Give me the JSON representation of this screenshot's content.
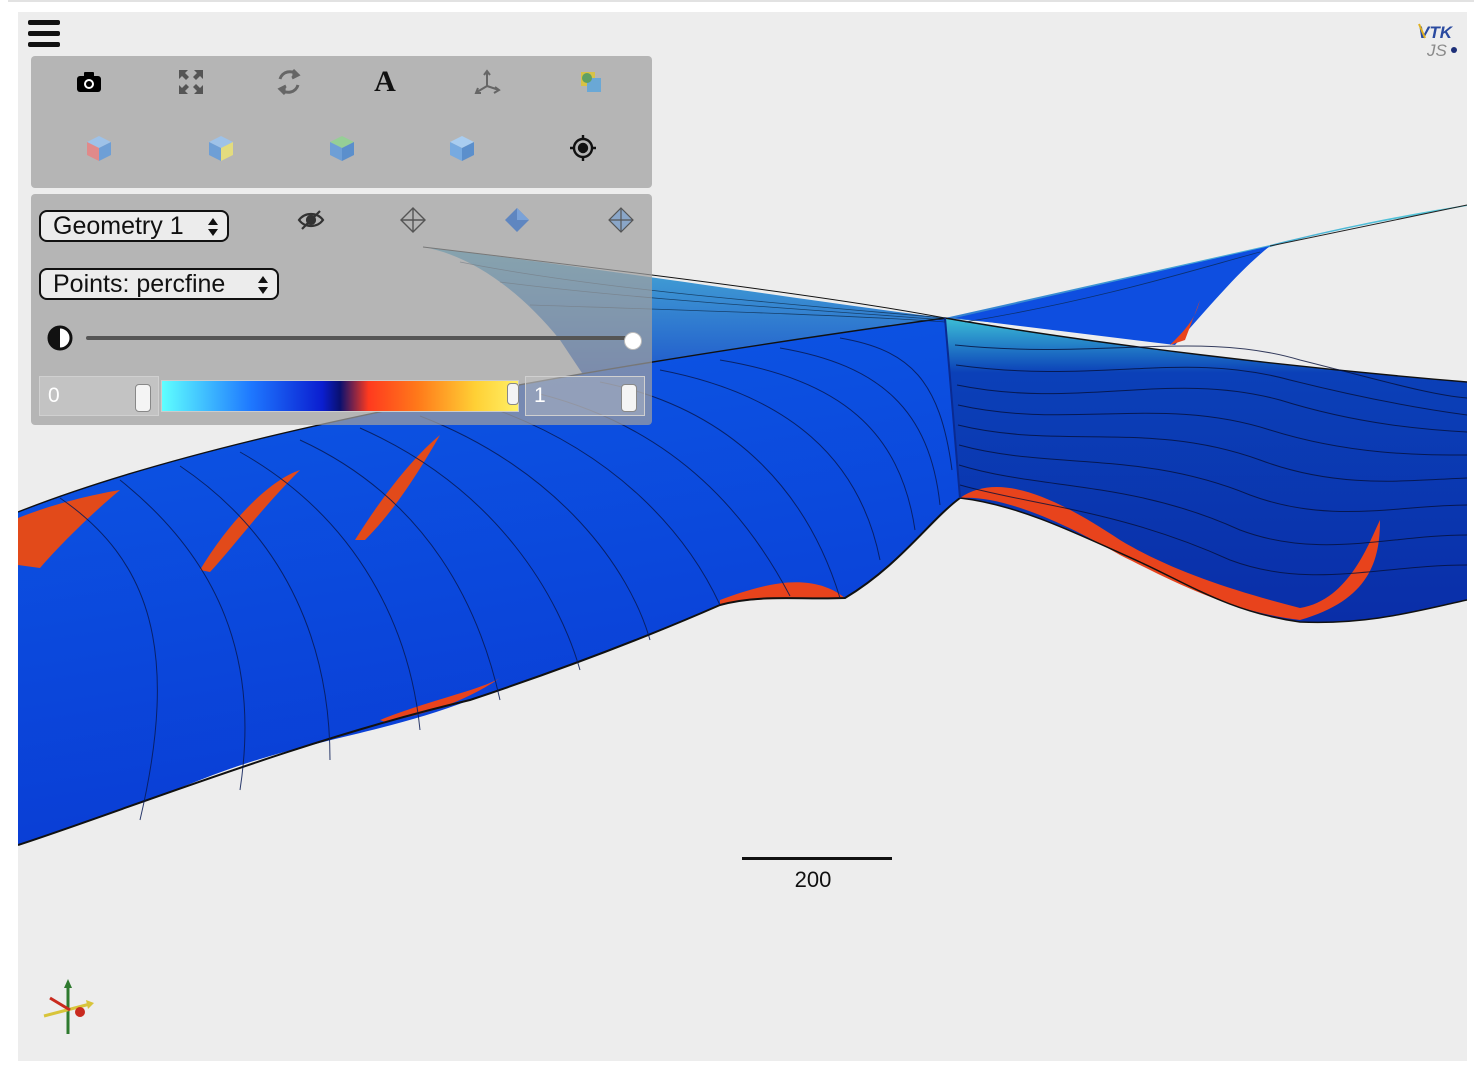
{
  "viewer": {
    "logo_text_top": "VTK",
    "logo_text_bottom": "JS",
    "scale_bar_label": "200"
  },
  "toolbar": {
    "row1": [
      {
        "icon": "camera-icon",
        "action": "screenshot"
      },
      {
        "icon": "fullscreen-icon",
        "action": "reset-camera"
      },
      {
        "icon": "rotate-icon",
        "action": "rotate"
      },
      {
        "icon": "text-icon",
        "label": "A",
        "action": "toggle-labels"
      },
      {
        "icon": "axes-icon",
        "action": "toggle-orientation-axes"
      },
      {
        "icon": "background-icon",
        "action": "toggle-background"
      }
    ],
    "row2": [
      {
        "icon": "view-x-icon",
        "action": "view-x",
        "color": "#e07a7a"
      },
      {
        "icon": "view-y-icon",
        "action": "view-y",
        "color": "#e0d77a"
      },
      {
        "icon": "view-z-icon",
        "action": "view-z",
        "color": "#86c486"
      },
      {
        "icon": "view-iso-icon",
        "action": "view-iso",
        "color": "#7aaee0"
      },
      {
        "icon": "target-icon",
        "action": "pick-center"
      }
    ]
  },
  "pipeline": {
    "geometry_select": {
      "value": "Geometry 1"
    },
    "representation_icons": [
      "hidden-eye-icon",
      "points-repr-icon",
      "surface-repr-icon",
      "surface-edges-repr-icon"
    ],
    "color_by_select": {
      "value": "Points: percfine"
    },
    "opacity": 1.0,
    "color_range": {
      "min": "0",
      "max": "1"
    },
    "colormap": [
      "#5fffff",
      "#1e78ff",
      "#0b1ed0",
      "#0a1070",
      "#ff3a1e",
      "#ff7a1a",
      "#ffd035",
      "#fff066"
    ]
  },
  "colors": {
    "background": "#ededed",
    "surface_blue": "#0c3ed6",
    "surface_cyan": "#46c8dc",
    "surface_red": "#e8431c"
  }
}
